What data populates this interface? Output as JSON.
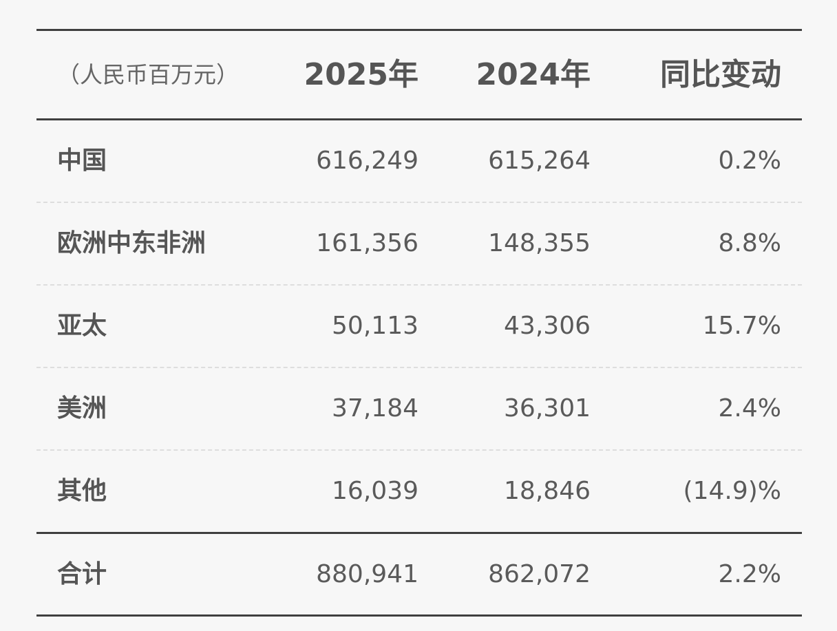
{
  "table": {
    "header": {
      "unit": "（人民币百万元）",
      "col_2025": "2025年",
      "col_2024": "2024年",
      "col_change": "同比变动"
    },
    "rows": [
      {
        "region": "中国",
        "v2025": "616,249",
        "v2024": "615,264",
        "change": "0.2%"
      },
      {
        "region": "欧洲中东非洲",
        "v2025": "161,356",
        "v2024": "148,355",
        "change": "8.8%"
      },
      {
        "region": "亚太",
        "v2025": "50,113",
        "v2024": "43,306",
        "change": "15.7%"
      },
      {
        "region": "美洲",
        "v2025": "37,184",
        "v2024": "36,301",
        "change": "2.4%"
      },
      {
        "region": "其他",
        "v2025": "16,039",
        "v2024": "18,846",
        "change": "(14.9)%"
      }
    ],
    "total": {
      "region": "合计",
      "v2025": "880,941",
      "v2024": "862,072",
      "change": "2.2%"
    }
  }
}
